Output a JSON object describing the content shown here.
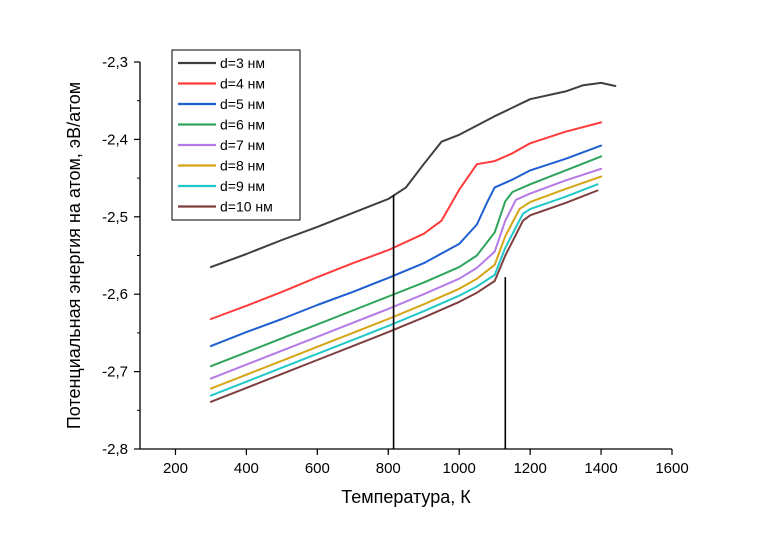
{
  "chart_data": {
    "type": "line",
    "xlabel": "Температура, К",
    "ylabel": "Потенциальная энергия на атом, эВ/атом",
    "xlim": [
      100,
      1600
    ],
    "ylim": [
      -2.8,
      -2.3
    ],
    "xticks": [
      200,
      400,
      600,
      800,
      1000,
      1200,
      1400,
      1600
    ],
    "xtick_labels": [
      "200",
      "400",
      "600",
      "800",
      "1000",
      "1200",
      "1400",
      "1600"
    ],
    "yticks": [
      -2.8,
      -2.7,
      -2.6,
      -2.5,
      -2.4,
      -2.3
    ],
    "ytick_labels": [
      "-2,8",
      "-2,7",
      "-2,6",
      "-2,5",
      "-2,4",
      "-2,3"
    ],
    "grid": false,
    "legend_position": "top-left",
    "vertical_markers": [
      {
        "x": 815,
        "y_top": -2.472
      },
      {
        "x": 1130,
        "y_top": -2.578
      }
    ],
    "series": [
      {
        "name": "d=3 нм",
        "color": "#3f3f3f",
        "x": [
          300,
          400,
          500,
          600,
          700,
          800,
          850,
          900,
          950,
          1000,
          1100,
          1200,
          1300,
          1350,
          1400,
          1440
        ],
        "y": [
          -2.565,
          -2.548,
          -2.53,
          -2.513,
          -2.495,
          -2.477,
          -2.462,
          -2.432,
          -2.403,
          -2.394,
          -2.37,
          -2.348,
          -2.338,
          -2.33,
          -2.327,
          -2.331
        ]
      },
      {
        "name": "d=4 нм",
        "color": "#ff3b3b",
        "x": [
          300,
          400,
          500,
          600,
          700,
          800,
          900,
          950,
          1000,
          1050,
          1100,
          1150,
          1200,
          1300,
          1400
        ],
        "y": [
          -2.632,
          -2.615,
          -2.597,
          -2.578,
          -2.56,
          -2.543,
          -2.522,
          -2.505,
          -2.465,
          -2.432,
          -2.428,
          -2.418,
          -2.405,
          -2.39,
          -2.378
        ]
      },
      {
        "name": "d=5 нм",
        "color": "#1f5fd1",
        "x": [
          300,
          400,
          500,
          600,
          700,
          800,
          900,
          1000,
          1050,
          1080,
          1100,
          1150,
          1200,
          1300,
          1400
        ],
        "y": [
          -2.667,
          -2.649,
          -2.632,
          -2.614,
          -2.597,
          -2.579,
          -2.56,
          -2.535,
          -2.51,
          -2.48,
          -2.462,
          -2.452,
          -2.44,
          -2.425,
          -2.408
        ]
      },
      {
        "name": "d=6 нм",
        "color": "#2ea55a",
        "x": [
          300,
          400,
          500,
          600,
          700,
          800,
          900,
          1000,
          1050,
          1100,
          1130,
          1150,
          1200,
          1300,
          1400
        ],
        "y": [
          -2.693,
          -2.675,
          -2.657,
          -2.639,
          -2.621,
          -2.603,
          -2.585,
          -2.565,
          -2.55,
          -2.52,
          -2.48,
          -2.468,
          -2.458,
          -2.44,
          -2.422
        ]
      },
      {
        "name": "d=7 нм",
        "color": "#b57ae6",
        "x": [
          300,
          400,
          500,
          600,
          700,
          800,
          900,
          1000,
          1050,
          1100,
          1130,
          1160,
          1200,
          1300,
          1400
        ],
        "y": [
          -2.709,
          -2.691,
          -2.673,
          -2.655,
          -2.637,
          -2.619,
          -2.6,
          -2.58,
          -2.566,
          -2.545,
          -2.505,
          -2.478,
          -2.47,
          -2.453,
          -2.438
        ]
      },
      {
        "name": "d=8 нм",
        "color": "#d4a514",
        "x": [
          300,
          400,
          500,
          600,
          700,
          800,
          900,
          1000,
          1050,
          1100,
          1130,
          1170,
          1200,
          1300,
          1400
        ],
        "y": [
          -2.722,
          -2.704,
          -2.686,
          -2.668,
          -2.65,
          -2.632,
          -2.613,
          -2.593,
          -2.58,
          -2.562,
          -2.525,
          -2.49,
          -2.481,
          -2.464,
          -2.448
        ]
      },
      {
        "name": "d=9 нм",
        "color": "#22c8c8",
        "x": [
          300,
          400,
          500,
          600,
          700,
          800,
          900,
          1000,
          1050,
          1100,
          1130,
          1180,
          1200,
          1300,
          1390
        ],
        "y": [
          -2.731,
          -2.713,
          -2.695,
          -2.677,
          -2.659,
          -2.641,
          -2.622,
          -2.602,
          -2.59,
          -2.575,
          -2.54,
          -2.496,
          -2.49,
          -2.474,
          -2.458
        ]
      },
      {
        "name": "d=10 нм",
        "color": "#7f3f3f",
        "x": [
          300,
          400,
          500,
          600,
          700,
          800,
          900,
          1000,
          1050,
          1100,
          1130,
          1180,
          1200,
          1300,
          1390
        ],
        "y": [
          -2.739,
          -2.721,
          -2.703,
          -2.685,
          -2.667,
          -2.649,
          -2.63,
          -2.61,
          -2.598,
          -2.583,
          -2.55,
          -2.505,
          -2.498,
          -2.482,
          -2.466
        ]
      }
    ]
  }
}
